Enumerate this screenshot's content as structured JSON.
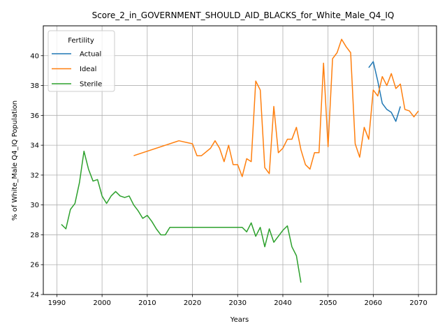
{
  "chart_data": {
    "type": "line",
    "title": "Score_2_in_GOVERNMENT_SHOULD_AID_BLACKS_for_White_Male_Q4_IQ",
    "xlabel": "Years",
    "ylabel": "% of White_Male Q4_IQ Population",
    "xlim": [
      1987,
      2074
    ],
    "ylim": [
      24,
      42
    ],
    "xticks": [
      1990,
      2000,
      2010,
      2020,
      2030,
      2040,
      2050,
      2060,
      2070
    ],
    "yticks": [
      24,
      26,
      28,
      30,
      32,
      34,
      36,
      38,
      40
    ],
    "grid": true,
    "legend": {
      "title": "Fertility",
      "position": "top-left"
    },
    "series": [
      {
        "name": "Actual",
        "color": "#1f77b4",
        "points": [
          [
            2059,
            39.2
          ],
          [
            2060,
            39.6
          ],
          [
            2061,
            38.3
          ],
          [
            2062,
            36.8
          ],
          [
            2063,
            36.4
          ],
          [
            2064,
            36.2
          ],
          [
            2065,
            35.6
          ],
          [
            2066,
            36.6
          ]
        ]
      },
      {
        "name": "Ideal",
        "color": "#ff7f0e",
        "points": [
          [
            2007,
            33.3
          ],
          [
            2017,
            34.3
          ],
          [
            2020,
            34.1
          ],
          [
            2021,
            33.3
          ],
          [
            2022,
            33.3
          ],
          [
            2024,
            33.8
          ],
          [
            2025,
            34.3
          ],
          [
            2026,
            33.8
          ],
          [
            2027,
            32.9
          ],
          [
            2028,
            34.0
          ],
          [
            2029,
            32.7
          ],
          [
            2030,
            32.7
          ],
          [
            2031,
            31.9
          ],
          [
            2032,
            33.1
          ],
          [
            2033,
            32.9
          ],
          [
            2034,
            38.3
          ],
          [
            2035,
            37.7
          ],
          [
            2036,
            32.5
          ],
          [
            2037,
            32.1
          ],
          [
            2038,
            36.6
          ],
          [
            2039,
            33.5
          ],
          [
            2040,
            33.8
          ],
          [
            2041,
            34.4
          ],
          [
            2042,
            34.4
          ],
          [
            2043,
            35.2
          ],
          [
            2044,
            33.7
          ],
          [
            2045,
            32.7
          ],
          [
            2046,
            32.4
          ],
          [
            2047,
            33.5
          ],
          [
            2048,
            33.5
          ],
          [
            2049,
            39.5
          ],
          [
            2050,
            33.9
          ],
          [
            2051,
            39.8
          ],
          [
            2052,
            40.2
          ],
          [
            2053,
            41.1
          ],
          [
            2054,
            40.6
          ],
          [
            2055,
            40.2
          ],
          [
            2056,
            34.1
          ],
          [
            2057,
            33.2
          ],
          [
            2058,
            35.2
          ],
          [
            2059,
            34.4
          ],
          [
            2060,
            37.7
          ],
          [
            2061,
            37.3
          ],
          [
            2062,
            38.6
          ],
          [
            2063,
            38.0
          ],
          [
            2064,
            38.8
          ],
          [
            2065,
            37.8
          ],
          [
            2066,
            38.1
          ],
          [
            2067,
            36.4
          ],
          [
            2068,
            36.3
          ],
          [
            2069,
            35.9
          ],
          [
            2070,
            36.3
          ]
        ]
      },
      {
        "name": "Sterile",
        "color": "#2ca02c",
        "points": [
          [
            1991,
            28.7
          ],
          [
            1992,
            28.4
          ],
          [
            1993,
            29.7
          ],
          [
            1994,
            30.1
          ],
          [
            1995,
            31.5
          ],
          [
            1996,
            33.6
          ],
          [
            1997,
            32.4
          ],
          [
            1998,
            31.6
          ],
          [
            1999,
            31.7
          ],
          [
            2000,
            30.6
          ],
          [
            2001,
            30.1
          ],
          [
            2002,
            30.6
          ],
          [
            2003,
            30.9
          ],
          [
            2004,
            30.6
          ],
          [
            2005,
            30.5
          ],
          [
            2006,
            30.6
          ],
          [
            2007,
            30.0
          ],
          [
            2008,
            29.6
          ],
          [
            2009,
            29.1
          ],
          [
            2010,
            29.3
          ],
          [
            2011,
            28.9
          ],
          [
            2012,
            28.4
          ],
          [
            2013,
            28.0
          ],
          [
            2014,
            28.0
          ],
          [
            2015,
            28.5
          ],
          [
            2030,
            28.5
          ],
          [
            2031,
            28.5
          ],
          [
            2032,
            28.2
          ],
          [
            2033,
            28.8
          ],
          [
            2034,
            27.9
          ],
          [
            2035,
            28.5
          ],
          [
            2036,
            27.2
          ],
          [
            2037,
            28.4
          ],
          [
            2038,
            27.5
          ],
          [
            2039,
            27.9
          ],
          [
            2040,
            28.3
          ],
          [
            2041,
            28.6
          ],
          [
            2042,
            27.2
          ],
          [
            2043,
            26.6
          ],
          [
            2044,
            24.8
          ]
        ]
      }
    ]
  }
}
